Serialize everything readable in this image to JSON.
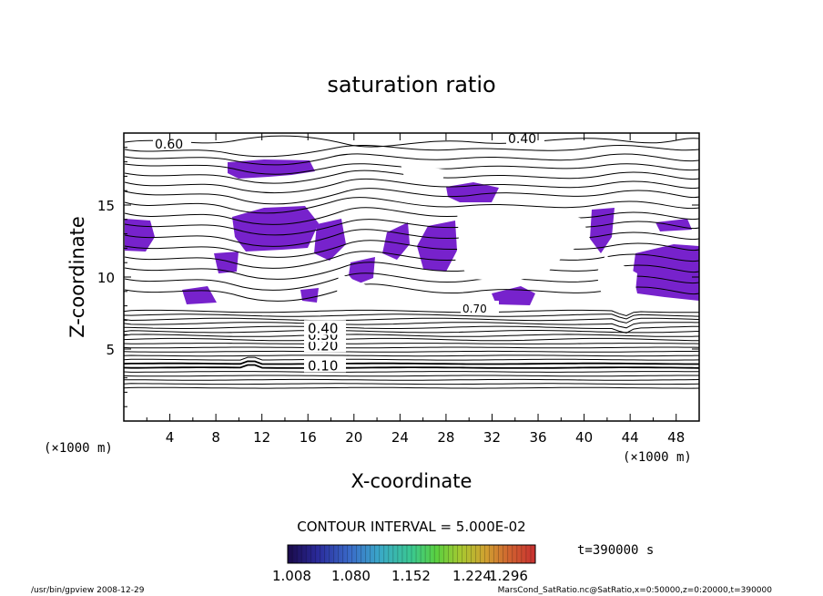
{
  "chart_data": {
    "type": "contour",
    "title": "saturation ratio",
    "xlabel": "X-coordinate",
    "ylabel": "Z-coordinate",
    "x_unit": "(×1000 m)",
    "z_unit": "(×1000 m)",
    "xlim": [
      0,
      50
    ],
    "ylim": [
      0,
      20
    ],
    "x_ticks": [
      "4",
      "8",
      "12",
      "16",
      "20",
      "24",
      "28",
      "32",
      "36",
      "40",
      "44",
      "48"
    ],
    "y_ticks": [
      "5",
      "10",
      "15"
    ],
    "contour_labels": [
      "0.10",
      "0.20",
      "0.30",
      "0.40",
      "0.40",
      "0.60",
      "0.70"
    ],
    "lower_levels": [
      {
        "value": "0.10",
        "z": 3.9
      },
      {
        "value": "0.20",
        "z": 5.3
      },
      {
        "value": "0.30",
        "z": 6.0
      },
      {
        "value": "0.40",
        "z": 6.5
      }
    ],
    "contour_interval_text": "CONTOUR INTERVAL = 5.000E-02",
    "colorbar": {
      "tick_labels": [
        "1.008",
        "1.080",
        "1.152",
        "1.224",
        "1.296"
      ],
      "colors": [
        "#1a0a4a",
        "#2a2a9a",
        "#3a6ac8",
        "#3aa8c8",
        "#3ac890",
        "#5ad040",
        "#a8c830",
        "#d0a030",
        "#d06030",
        "#c83030"
      ]
    },
    "time_label": "t=390000 s",
    "supersaturated_color": "#7722cc",
    "grid": false
  },
  "footer": {
    "left": "/usr/bin/gpview   2008-12-29",
    "right": "MarsCond_SatRatio.nc@SatRatio,x=0:50000,z=0:20000,t=390000"
  }
}
